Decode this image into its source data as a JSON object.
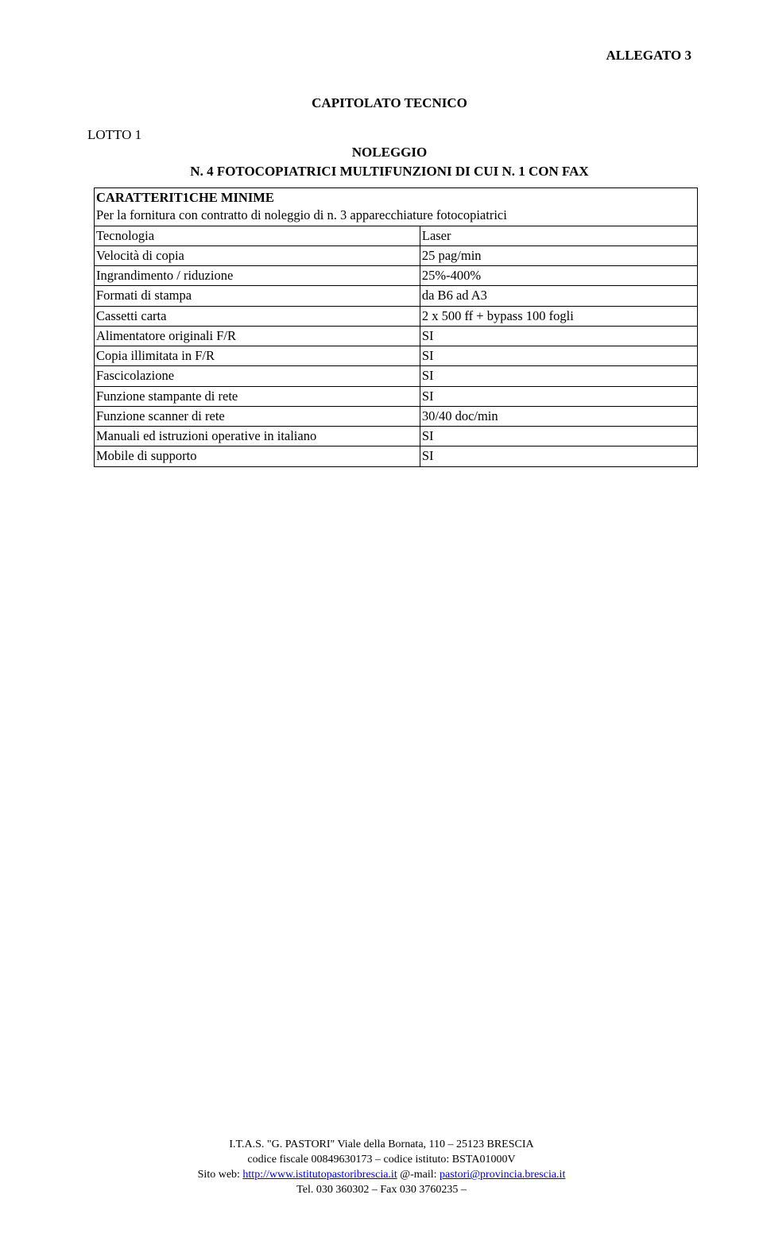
{
  "header": {
    "allegato": "ALLEGATO 3"
  },
  "titles": {
    "lotto": "LOTTO 1",
    "capitolato": "CAPITOLATO TECNICO",
    "noleggio": "NOLEGGIO",
    "line": "N. 4 FOTOCOPIATRICI MULTIFUNZIONI DI CUI N. 1 CON FAX"
  },
  "table": {
    "header": {
      "label": "CARATTERIT1CHE MINIME",
      "desc": "Per la fornitura con contratto di noleggio di n. 3 apparecchiature fotocopiatrici"
    },
    "rows": [
      {
        "k": "Tecnologia",
        "v": "Laser"
      },
      {
        "k": "Velocità di copia",
        "v": "25 pag/min"
      },
      {
        "k": "Ingrandimento / riduzione",
        "v": "25%-400%"
      },
      {
        "k": "Formati di stampa",
        "v": "da B6 ad A3"
      },
      {
        "k": "Cassetti carta",
        "v": "2 x 500 ff + bypass 100 fogli"
      },
      {
        "k": "Alimentatore originali F/R",
        "v": "SI"
      },
      {
        "k": "Copia illimitata in F/R",
        "v": "SI"
      },
      {
        "k": "Fascicolazione",
        "v": "SI"
      },
      {
        "k": "Funzione stampante di rete",
        "v": "SI"
      },
      {
        "k": "Funzione scanner di rete",
        "v": "30/40 doc/min"
      },
      {
        "k": "Manuali ed istruzioni operative in italiano",
        "v": "SI"
      },
      {
        "k": "Mobile di supporto",
        "v": "SI"
      }
    ]
  },
  "footer": {
    "line1_pre": "I.T.A.S. ",
    "line1_quote": "\"G. PASTORI\"",
    "line1_post": " Viale della Bornata, 110 – 25123 BRESCIA",
    "line2": "codice fiscale 00849630173 – codice istituto: BSTA01000V",
    "line3_pre": "Sito web: ",
    "line3_url": "http://www.istitutopastoribrescia.it",
    "line3_mid": " @-mail: ",
    "line3_mail": "pastori@provincia.brescia.it",
    "line4": "Tel. 030 360302 – Fax 030 3760235 –"
  }
}
